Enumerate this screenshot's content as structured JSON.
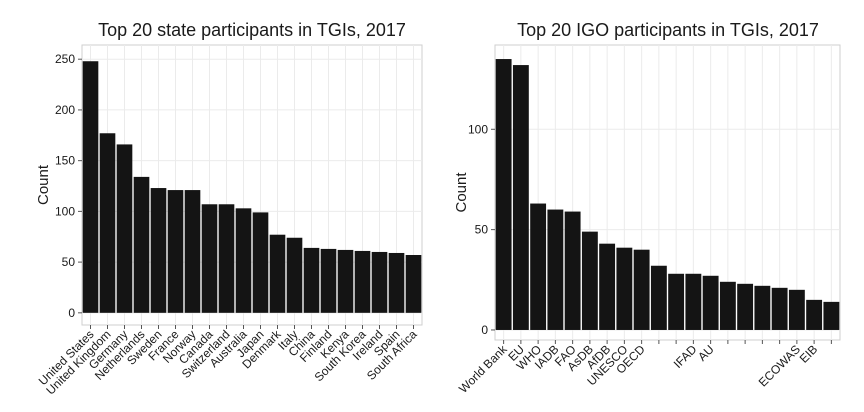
{
  "chart_data": [
    {
      "type": "bar",
      "title": "Top 20 state participants in TGIs, 2017",
      "ylabel": "Count",
      "categories": [
        "United States",
        "United Kingdom",
        "Germany",
        "Netherlands",
        "Sweden",
        "France",
        "Norway",
        "Canada",
        "Switzerland",
        "Australia",
        "Japan",
        "Denmark",
        "Italy",
        "China",
        "Finland",
        "Kenya",
        "South Korea",
        "Ireland",
        "Spain",
        "South Africa"
      ],
      "values": [
        248,
        177,
        166,
        134,
        123,
        121,
        121,
        107,
        107,
        103,
        99,
        77,
        74,
        64,
        63,
        62,
        61,
        60,
        59,
        57
      ],
      "color": "#141414",
      "ylim": [
        -12,
        264
      ],
      "yticks": [
        0,
        50,
        100,
        150,
        200,
        250
      ],
      "grid": true
    },
    {
      "type": "bar",
      "title": "Top 20 IGO participants in TGIs, 2017",
      "ylabel": "Count",
      "categories": [
        "World Bank",
        "EU",
        "WHO",
        "IADB",
        "FAO",
        "AsDB",
        "AfDB",
        "UNESCO",
        "OECD",
        null,
        null,
        "IFAD",
        "AU",
        null,
        null,
        null,
        null,
        "ECOWAS",
        "EIB",
        null
      ],
      "values": [
        135,
        132,
        63,
        60,
        59,
        49,
        43,
        41,
        40,
        32,
        28,
        28,
        27,
        24,
        23,
        22,
        21,
        20,
        15,
        14
      ],
      "color": "#141414",
      "ylim": [
        -5,
        142
      ],
      "yticks": [
        0,
        50,
        100
      ],
      "grid": true
    }
  ]
}
